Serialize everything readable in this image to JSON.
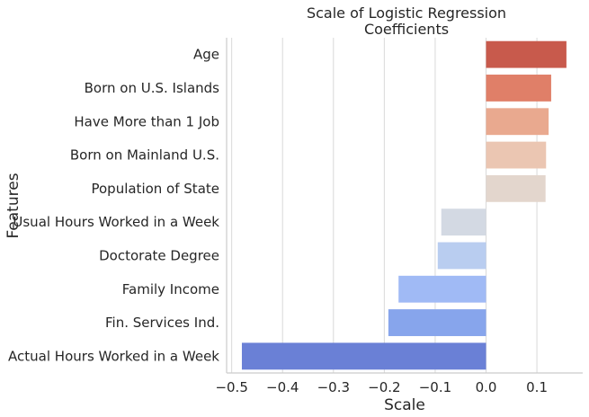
{
  "chart_data": {
    "type": "bar",
    "orientation": "horizontal",
    "title": "Scale of Logistic Regression\nCoefficients",
    "xlabel": "Scale",
    "ylabel": "Features",
    "xlim": [
      -0.51,
      0.19
    ],
    "xticks": [
      -0.5,
      -0.4,
      -0.3,
      -0.2,
      -0.1,
      0.0,
      0.1
    ],
    "xtick_labels": [
      "−0.5",
      "−0.4",
      "−0.3",
      "−0.2",
      "−0.1",
      "0.0",
      "0.1"
    ],
    "grid": "vertical",
    "categories": [
      "Age",
      "Born on U.S. Islands",
      "Have More than 1 Job",
      "Born on Mainland U.S.",
      "Population of State",
      "Usual Hours Worked in a Week",
      "Doctorate Degree",
      "Family Income",
      "Fin. Services Ind.",
      "Actual Hours Worked in a Week"
    ],
    "values": [
      0.158,
      0.128,
      0.123,
      0.118,
      0.117,
      -0.088,
      -0.095,
      -0.172,
      -0.192,
      -0.48
    ],
    "colors": [
      "#c85a4c",
      "#e07f68",
      "#e9a98f",
      "#ebc6b2",
      "#e3d6cd",
      "#d3d9e3",
      "#b9cdf0",
      "#a0baf5",
      "#87a5ec",
      "#6a80d6"
    ]
  }
}
